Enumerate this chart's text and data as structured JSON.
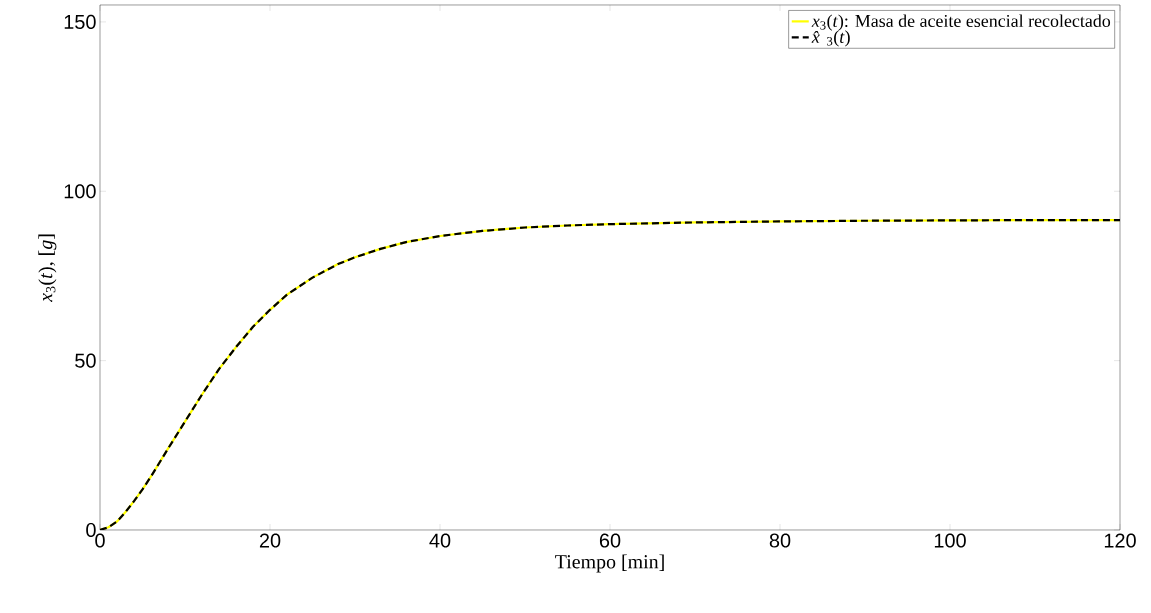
{
  "chart_data": {
    "type": "line",
    "xlabel": "Tiempo [min]",
    "ylabel": "*x*$_{3}$(*t*),  [*g*]",
    "xlim": [
      0,
      120
    ],
    "ylim": [
      0,
      155
    ],
    "xticks": [
      0,
      20,
      40,
      60,
      80,
      100,
      120
    ],
    "yticks": [
      0,
      50,
      100,
      150
    ],
    "legend": "top right",
    "grid": false,
    "x": [
      0,
      1,
      2,
      3,
      4,
      5,
      6,
      8,
      10,
      12,
      14,
      16,
      18,
      20,
      22,
      25,
      28,
      30,
      33,
      36,
      40,
      45,
      50,
      55,
      60,
      70,
      80,
      90,
      100,
      110,
      120
    ],
    "series": [
      {
        "name": "*x*$_{3}$(*t*): Masa de aceite esencial recolectado",
        "color": "#ffff00",
        "line_style": "solid",
        "values": [
          0,
          0.8,
          2.5,
          5.3,
          8.5,
          12,
          15.8,
          24,
          32,
          40,
          47.5,
          54,
          60,
          65,
          69.5,
          74.5,
          78.5,
          80.5,
          83,
          85,
          86.8,
          88.3,
          89.3,
          89.9,
          90.3,
          90.8,
          91.1,
          91.3,
          91.4,
          91.5,
          91.5
        ]
      },
      {
        "name": "*x̂*$_{3}$(*t*)",
        "color": "#000000",
        "line_style": "dashed",
        "values": [
          0,
          0.8,
          2.5,
          5.3,
          8.5,
          12,
          15.8,
          24,
          32,
          40,
          47.5,
          54,
          60,
          65,
          69.5,
          74.5,
          78.5,
          80.5,
          83,
          85,
          86.8,
          88.3,
          89.3,
          89.9,
          90.3,
          90.8,
          91.1,
          91.3,
          91.4,
          91.5,
          91.5
        ]
      }
    ]
  }
}
